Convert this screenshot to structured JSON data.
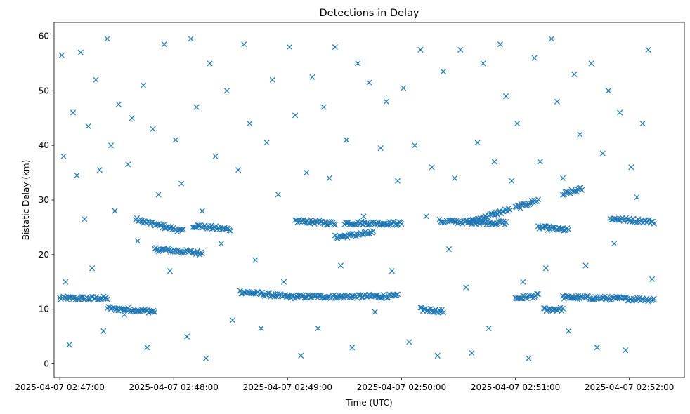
{
  "chart_data": {
    "type": "scatter",
    "title": "Detections in Delay",
    "xlabel": "Time (UTC)",
    "ylabel": "Bistatic Delay (km)",
    "xlim": [
      "2025-04-07 02:46:57",
      "2025-04-07 02:52:29"
    ],
    "ylim": [
      -2.5,
      62.5
    ],
    "grid": false,
    "marker": "x",
    "color": "#1f77b4",
    "x_ticks": [
      {
        "t": "2025-04-07 02:47:00",
        "label": "2025-04-07 02:47:00"
      },
      {
        "t": "2025-04-07 02:48:00",
        "label": "2025-04-07 02:48:00"
      },
      {
        "t": "2025-04-07 02:49:00",
        "label": "2025-04-07 02:49:00"
      },
      {
        "t": "2025-04-07 02:50:00",
        "label": "2025-04-07 02:50:00"
      },
      {
        "t": "2025-04-07 02:51:00",
        "label": "2025-04-07 02:51:00"
      },
      {
        "t": "2025-04-07 02:52:00",
        "label": "2025-04-07 02:52:00"
      }
    ],
    "y_ticks": [
      0,
      10,
      20,
      30,
      40,
      50,
      60
    ],
    "tracks": [
      {
        "name": "",
        "x": [
          "2025-04-07 02:47:00",
          "2025-04-07 02:47:25"
        ],
        "y": [
          12.0,
          12.0
        ]
      },
      {
        "name": "",
        "x": [
          "2025-04-07 02:47:25",
          "2025-04-07 02:47:50"
        ],
        "y": [
          10.2,
          9.6
        ]
      },
      {
        "name": "",
        "x": [
          "2025-04-07 02:47:40",
          "2025-04-07 02:48:05"
        ],
        "y": [
          26.4,
          24.3
        ]
      },
      {
        "name": "",
        "x": [
          "2025-04-07 02:47:50",
          "2025-04-07 02:48:15"
        ],
        "y": [
          21.0,
          20.3
        ]
      },
      {
        "name": "",
        "x": [
          "2025-04-07 02:48:10",
          "2025-04-07 02:48:30"
        ],
        "y": [
          25.3,
          24.6
        ]
      },
      {
        "name": "",
        "x": [
          "2025-04-07 02:48:35",
          "2025-04-07 02:49:00"
        ],
        "y": [
          13.2,
          12.3
        ]
      },
      {
        "name": "",
        "x": [
          "2025-04-07 02:49:00",
          "2025-04-07 02:49:58"
        ],
        "y": [
          12.3,
          12.4
        ]
      },
      {
        "name": "",
        "x": [
          "2025-04-07 02:49:04",
          "2025-04-07 02:49:25"
        ],
        "y": [
          26.2,
          25.7
        ]
      },
      {
        "name": "",
        "x": [
          "2025-04-07 02:49:30",
          "2025-04-07 02:50:00"
        ],
        "y": [
          25.8,
          25.7
        ]
      },
      {
        "name": "",
        "x": [
          "2025-04-07 02:49:25",
          "2025-04-07 02:49:45"
        ],
        "y": [
          23.2,
          24.0
        ]
      },
      {
        "name": "",
        "x": [
          "2025-04-07 02:50:10",
          "2025-04-07 02:50:22"
        ],
        "y": [
          10.0,
          9.6
        ]
      },
      {
        "name": "",
        "x": [
          "2025-04-07 02:50:20",
          "2025-04-07 02:50:55"
        ],
        "y": [
          26.1,
          25.8
        ]
      },
      {
        "name": "",
        "x": [
          "2025-04-07 02:50:35",
          "2025-04-07 02:50:57"
        ],
        "y": [
          25.9,
          28.3
        ]
      },
      {
        "name": "",
        "x": [
          "2025-04-07 02:51:00",
          "2025-04-07 02:51:12"
        ],
        "y": [
          28.5,
          30.0
        ]
      },
      {
        "name": "",
        "x": [
          "2025-04-07 02:51:00",
          "2025-04-07 02:51:12"
        ],
        "y": [
          12.0,
          12.5
        ]
      },
      {
        "name": "",
        "x": [
          "2025-04-07 02:51:12",
          "2025-04-07 02:51:28"
        ],
        "y": [
          25.0,
          24.5
        ]
      },
      {
        "name": "",
        "x": [
          "2025-04-07 02:51:25",
          "2025-04-07 02:51:35"
        ],
        "y": [
          31.0,
          32.0
        ]
      },
      {
        "name": "",
        "x": [
          "2025-04-07 02:51:15",
          "2025-04-07 02:51:25"
        ],
        "y": [
          10.0,
          10.0
        ]
      },
      {
        "name": "",
        "x": [
          "2025-04-07 02:51:25",
          "2025-04-07 02:52:13"
        ],
        "y": [
          12.2,
          11.8
        ]
      },
      {
        "name": "",
        "x": [
          "2025-04-07 02:51:50",
          "2025-04-07 02:52:13"
        ],
        "y": [
          26.6,
          26.0
        ]
      }
    ],
    "scatter_points": {
      "x": [
        "2025-04-07 02:47:01",
        "2025-04-07 02:47:02",
        "2025-04-07 02:47:03",
        "2025-04-07 02:47:05",
        "2025-04-07 02:47:07",
        "2025-04-07 02:47:09",
        "2025-04-07 02:47:11",
        "2025-04-07 02:47:13",
        "2025-04-07 02:47:15",
        "2025-04-07 02:47:17",
        "2025-04-07 02:47:19",
        "2025-04-07 02:47:21",
        "2025-04-07 02:47:23",
        "2025-04-07 02:47:25",
        "2025-04-07 02:47:27",
        "2025-04-07 02:47:29",
        "2025-04-07 02:47:31",
        "2025-04-07 02:47:34",
        "2025-04-07 02:47:36",
        "2025-04-07 02:47:38",
        "2025-04-07 02:47:41",
        "2025-04-07 02:47:44",
        "2025-04-07 02:47:46",
        "2025-04-07 02:47:49",
        "2025-04-07 02:47:52",
        "2025-04-07 02:47:55",
        "2025-04-07 02:47:58",
        "2025-04-07 02:48:01",
        "2025-04-07 02:48:04",
        "2025-04-07 02:48:07",
        "2025-04-07 02:48:09",
        "2025-04-07 02:48:12",
        "2025-04-07 02:48:15",
        "2025-04-07 02:48:17",
        "2025-04-07 02:48:19",
        "2025-04-07 02:48:22",
        "2025-04-07 02:48:25",
        "2025-04-07 02:48:28",
        "2025-04-07 02:48:31",
        "2025-04-07 02:48:34",
        "2025-04-07 02:48:37",
        "2025-04-07 02:48:40",
        "2025-04-07 02:48:43",
        "2025-04-07 02:48:46",
        "2025-04-07 02:48:49",
        "2025-04-07 02:48:52",
        "2025-04-07 02:48:55",
        "2025-04-07 02:48:58",
        "2025-04-07 02:49:01",
        "2025-04-07 02:49:04",
        "2025-04-07 02:49:07",
        "2025-04-07 02:49:10",
        "2025-04-07 02:49:13",
        "2025-04-07 02:49:16",
        "2025-04-07 02:49:19",
        "2025-04-07 02:49:22",
        "2025-04-07 02:49:25",
        "2025-04-07 02:49:28",
        "2025-04-07 02:49:31",
        "2025-04-07 02:49:34",
        "2025-04-07 02:49:37",
        "2025-04-07 02:49:40",
        "2025-04-07 02:49:43",
        "2025-04-07 02:49:46",
        "2025-04-07 02:49:49",
        "2025-04-07 02:49:52",
        "2025-04-07 02:49:55",
        "2025-04-07 02:49:58",
        "2025-04-07 02:50:01",
        "2025-04-07 02:50:04",
        "2025-04-07 02:50:07",
        "2025-04-07 02:50:10",
        "2025-04-07 02:50:13",
        "2025-04-07 02:50:16",
        "2025-04-07 02:50:19",
        "2025-04-07 02:50:22",
        "2025-04-07 02:50:25",
        "2025-04-07 02:50:28",
        "2025-04-07 02:50:31",
        "2025-04-07 02:50:34",
        "2025-04-07 02:50:37",
        "2025-04-07 02:50:40",
        "2025-04-07 02:50:43",
        "2025-04-07 02:50:46",
        "2025-04-07 02:50:49",
        "2025-04-07 02:50:52",
        "2025-04-07 02:50:55",
        "2025-04-07 02:50:58",
        "2025-04-07 02:51:01",
        "2025-04-07 02:51:04",
        "2025-04-07 02:51:07",
        "2025-04-07 02:51:10",
        "2025-04-07 02:51:13",
        "2025-04-07 02:51:16",
        "2025-04-07 02:51:19",
        "2025-04-07 02:51:22",
        "2025-04-07 02:51:25",
        "2025-04-07 02:51:28",
        "2025-04-07 02:51:31",
        "2025-04-07 02:51:34",
        "2025-04-07 02:51:37",
        "2025-04-07 02:51:40",
        "2025-04-07 02:51:43",
        "2025-04-07 02:51:46",
        "2025-04-07 02:51:49",
        "2025-04-07 02:51:52",
        "2025-04-07 02:51:55",
        "2025-04-07 02:51:58",
        "2025-04-07 02:52:01",
        "2025-04-07 02:52:04",
        "2025-04-07 02:52:07",
        "2025-04-07 02:52:10",
        "2025-04-07 02:52:12"
      ],
      "y": [
        56.5,
        38.0,
        15.0,
        3.5,
        46.0,
        34.5,
        57.0,
        26.5,
        43.5,
        17.5,
        52.0,
        35.5,
        6.0,
        59.5,
        40.0,
        28.0,
        47.5,
        9.0,
        36.5,
        45.0,
        22.5,
        51.0,
        3.0,
        43.0,
        31.0,
        58.5,
        17.0,
        41.0,
        33.0,
        5.0,
        59.5,
        47.0,
        28.0,
        1.0,
        55.0,
        38.0,
        22.0,
        50.0,
        8.0,
        35.5,
        58.5,
        44.0,
        19.0,
        6.5,
        40.5,
        52.0,
        31.0,
        15.0,
        58.0,
        45.5,
        1.5,
        35.0,
        52.5,
        6.5,
        47.0,
        34.0,
        58.0,
        18.0,
        41.0,
        3.0,
        55.0,
        27.0,
        51.5,
        9.5,
        39.5,
        48.0,
        17.0,
        33.5,
        50.5,
        4.0,
        40.0,
        57.5,
        27.0,
        36.0,
        1.5,
        53.5,
        21.0,
        34.0,
        57.5,
        14.0,
        2.0,
        40.5,
        55.0,
        6.5,
        37.0,
        58.5,
        49.0,
        33.5,
        44.0,
        15.0,
        1.0,
        56.0,
        37.0,
        17.5,
        59.5,
        48.0,
        34.0,
        6.0,
        53.0,
        42.0,
        18.0,
        55.0,
        3.0,
        38.5,
        50.0,
        22.0,
        46.0,
        2.5,
        36.0,
        30.5,
        44.0,
        57.5,
        15.5
      ]
    }
  }
}
